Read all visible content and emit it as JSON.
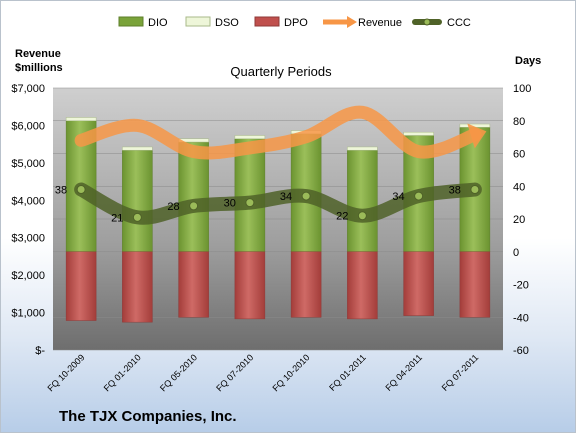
{
  "chart_data": {
    "type": "bar",
    "title": "Quarterly Periods",
    "company": "The TJX Companies, Inc.",
    "left_axis_label": [
      "Revenue",
      "$millions"
    ],
    "right_axis_label": "Days",
    "left_ylim": [
      0,
      7000
    ],
    "left_ticks": [
      "$-",
      "$1,000",
      "$2,000",
      "$3,000",
      "$4,000",
      "$5,000",
      "$6,000",
      "$7,000"
    ],
    "right_ylim": [
      -60,
      100
    ],
    "right_ticks": [
      "-60",
      "-40",
      "-20",
      "0",
      "20",
      "40",
      "60",
      "80",
      "100"
    ],
    "grid": true,
    "legend_position": "top",
    "categories": [
      "FQ 10-2009",
      "FQ 01-2010",
      "FQ 05-2010",
      "FQ 07-2010",
      "FQ 10-2010",
      "FQ 01-2011",
      "FQ 04-2011",
      "FQ 07-2011"
    ],
    "series": [
      {
        "name": "DIO",
        "values": [
          80,
          62,
          67,
          69,
          72,
          62,
          71,
          76
        ],
        "color": "#7aa33a"
      },
      {
        "name": "DSO",
        "values": [
          2,
          2,
          2,
          2,
          2,
          2,
          2,
          2
        ],
        "color": "#eef6d9"
      },
      {
        "name": "DPO",
        "values": [
          -42,
          -43,
          -40,
          -41,
          -40,
          -41,
          -39,
          -40
        ],
        "color": "#c0504d"
      },
      {
        "name": "Revenue",
        "values": [
          5600,
          6000,
          5300,
          5400,
          5700,
          6350,
          5300,
          5750
        ],
        "color": "#f79646"
      },
      {
        "name": "CCC",
        "values": [
          38,
          21,
          28,
          30,
          34,
          22,
          34,
          38
        ],
        "color": "#4f6228"
      }
    ],
    "ccc_labels": [
      "38",
      "21",
      "28",
      "30",
      "34",
      "22",
      "34",
      "38"
    ]
  }
}
